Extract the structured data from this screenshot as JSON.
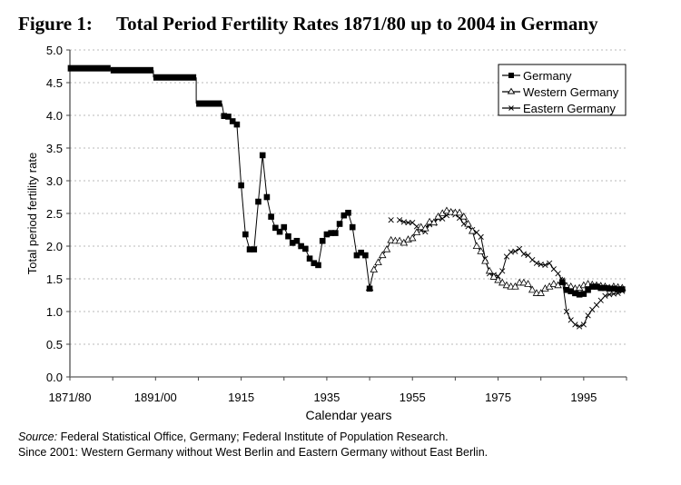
{
  "figure": {
    "number_label": "Figure 1:",
    "title": "Total Period Fertility Rates 1871/80 up to 2004 in Germany"
  },
  "notes": {
    "source_label": "Source:",
    "source_text": " Federal Statistical Office, Germany; Federal Institute of Population Research.",
    "footnote": "Since 2001: Western Germany without West Berlin and Eastern Germany without East Berlin."
  },
  "chart_data": {
    "type": "line",
    "title": "Total Period Fertility Rates 1871/80 up to 2004 in Germany",
    "xlabel": "Calendar years",
    "ylabel": "Total period fertility rate",
    "ylim": [
      0,
      5.0
    ],
    "yticks": [
      "0.0",
      "0.5",
      "1.0",
      "1.5",
      "2.0",
      "2.5",
      "3.0",
      "3.5",
      "4.0",
      "4.5",
      "5.0"
    ],
    "xlim": [
      1875,
      2005
    ],
    "xticks": [
      {
        "at": 1875,
        "label": "1871/80"
      },
      {
        "at": 1885,
        "label": ""
      },
      {
        "at": 1895,
        "label": "1891/00"
      },
      {
        "at": 1905,
        "label": ""
      },
      {
        "at": 1915,
        "label": "1915"
      },
      {
        "at": 1925,
        "label": ""
      },
      {
        "at": 1935,
        "label": "1935"
      },
      {
        "at": 1945,
        "label": ""
      },
      {
        "at": 1955,
        "label": "1955"
      },
      {
        "at": 1965,
        "label": ""
      },
      {
        "at": 1975,
        "label": "1975"
      },
      {
        "at": 1985,
        "label": ""
      },
      {
        "at": 1995,
        "label": "1995"
      },
      {
        "at": 2005,
        "label": ""
      }
    ],
    "grid": "horizontal-dotted",
    "legend_position": "top-right",
    "period_averages": [
      {
        "series": "Germany",
        "period": "1871/80",
        "from": 1874.5,
        "to": 1884.5,
        "value": 4.72
      },
      {
        "series": "Germany",
        "period": "1881/90",
        "from": 1884.5,
        "to": 1894.5,
        "value": 4.69
      },
      {
        "series": "Germany",
        "period": "1891/00",
        "from": 1894.5,
        "to": 1904.5,
        "value": 4.58
      },
      {
        "series": "Germany",
        "period": "1901/10",
        "from": 1904.5,
        "to": 1910.5,
        "value": 4.18
      }
    ],
    "series": [
      {
        "name": "Germany",
        "marker": "square",
        "segments": [
          {
            "x": [
              1911,
              1912,
              1913,
              1914,
              1915,
              1916,
              1917,
              1918,
              1919,
              1920,
              1921,
              1922,
              1923,
              1924,
              1925,
              1926,
              1927,
              1928,
              1929,
              1930,
              1931,
              1932,
              1933,
              1934,
              1935,
              1936,
              1937,
              1938,
              1939,
              1940,
              1941,
              1942,
              1943,
              1944,
              1945
            ],
            "y": [
              3.99,
              3.98,
              3.91,
              3.86,
              2.93,
              2.18,
              1.95,
              1.95,
              2.68,
              3.39,
              2.75,
              2.45,
              2.28,
              2.22,
              2.29,
              2.15,
              2.05,
              2.08,
              2.0,
              1.96,
              1.81,
              1.74,
              1.71,
              2.08,
              2.18,
              2.2,
              2.2,
              2.34,
              2.47,
              2.51,
              2.29,
              1.86,
              1.9,
              1.86,
              1.35
            ]
          },
          {
            "x": [
              1990,
              1991,
              1992,
              1993,
              1994,
              1995,
              1996,
              1997,
              1998,
              1999,
              2000,
              2001,
              2002,
              2003,
              2004
            ],
            "y": [
              1.45,
              1.33,
              1.31,
              1.28,
              1.26,
              1.27,
              1.33,
              1.38,
              1.38,
              1.36,
              1.36,
              1.35,
              1.35,
              1.34,
              1.34
            ]
          }
        ]
      },
      {
        "name": "Western Germany",
        "marker": "triangle",
        "segments": [
          {
            "x": [
              1945,
              1946,
              1947,
              1948,
              1949,
              1950,
              1951,
              1952,
              1953,
              1954,
              1955,
              1956,
              1957,
              1958,
              1959,
              1960,
              1961,
              1962,
              1963,
              1964,
              1965,
              1966,
              1967,
              1968,
              1969,
              1970,
              1971,
              1972,
              1973,
              1974,
              1975,
              1976,
              1977,
              1978,
              1979,
              1980,
              1981,
              1982,
              1983,
              1984,
              1985,
              1986,
              1987,
              1988,
              1989,
              1990,
              1991,
              1992,
              1993,
              1994,
              1995,
              1996,
              1997,
              1998,
              1999,
              2000,
              2001,
              2002,
              2003,
              2004
            ],
            "y": [
              1.36,
              1.64,
              1.75,
              1.86,
              1.95,
              2.09,
              2.08,
              2.08,
              2.05,
              2.1,
              2.12,
              2.21,
              2.29,
              2.27,
              2.37,
              2.36,
              2.45,
              2.5,
              2.54,
              2.52,
              2.51,
              2.51,
              2.45,
              2.34,
              2.23,
              2.0,
              1.92,
              1.77,
              1.62,
              1.53,
              1.48,
              1.44,
              1.4,
              1.38,
              1.38,
              1.44,
              1.44,
              1.42,
              1.33,
              1.28,
              1.28,
              1.35,
              1.38,
              1.42,
              1.4,
              1.47,
              1.39,
              1.38,
              1.35,
              1.36,
              1.4,
              1.42,
              1.41,
              1.4,
              1.39,
              1.38,
              1.36,
              1.38,
              1.37,
              1.36
            ]
          }
        ]
      },
      {
        "name": "Eastern Germany",
        "marker": "cross",
        "segments": [
          {
            "x": [
              1950
            ],
            "y": [
              2.4
            ]
          },
          {
            "x": [
              1952,
              1953,
              1954,
              1955,
              1956,
              1957,
              1958,
              1959,
              1960,
              1961,
              1962,
              1963,
              1964,
              1965,
              1966,
              1967,
              1968,
              1969,
              1970,
              1971,
              1972,
              1973,
              1974,
              1975,
              1976,
              1977,
              1978,
              1979,
              1980,
              1981,
              1982,
              1983,
              1984,
              1985,
              1986,
              1987,
              1988,
              1989,
              1990,
              1991,
              1992,
              1993,
              1994,
              1995,
              1996,
              1997,
              1998,
              1999,
              2000,
              2001,
              2002,
              2003,
              2004
            ],
            "y": [
              2.4,
              2.37,
              2.36,
              2.36,
              2.3,
              2.24,
              2.22,
              2.33,
              2.35,
              2.42,
              2.42,
              2.47,
              2.51,
              2.48,
              2.43,
              2.34,
              2.3,
              2.25,
              2.21,
              2.14,
              1.81,
              1.58,
              1.56,
              1.54,
              1.62,
              1.84,
              1.91,
              1.92,
              1.96,
              1.88,
              1.86,
              1.79,
              1.74,
              1.72,
              1.71,
              1.74,
              1.65,
              1.58,
              1.48,
              1.0,
              0.87,
              0.8,
              0.77,
              0.8,
              0.94,
              1.03,
              1.1,
              1.17,
              1.24,
              1.26,
              1.27,
              1.28,
              1.31
            ]
          }
        ]
      }
    ]
  }
}
